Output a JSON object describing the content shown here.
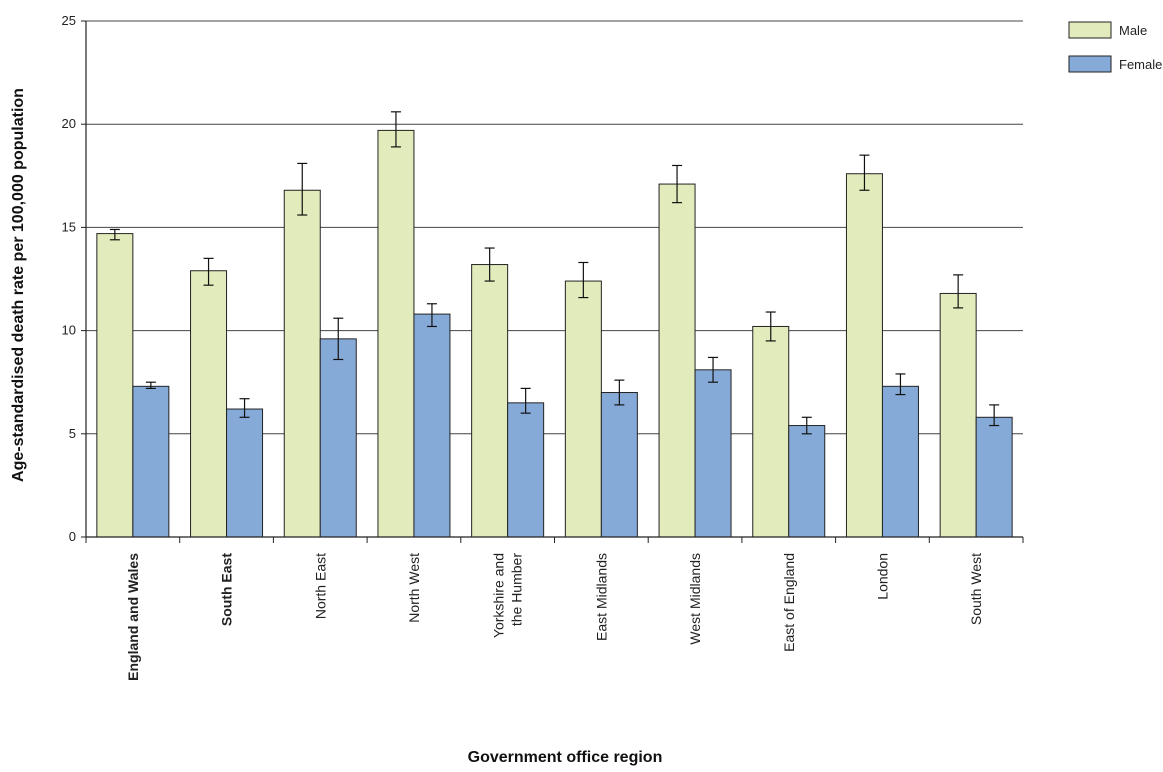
{
  "chart_data": {
    "type": "bar",
    "xlabel": "Government office region",
    "ylabel": "Age-standardised death rate per 100,000 population",
    "ylim": [
      0,
      25
    ],
    "yticks": [
      0,
      5,
      10,
      15,
      20,
      25
    ],
    "grid": true,
    "legend_position": "top-right",
    "categories": [
      {
        "lines": [
          "England and Wales"
        ],
        "bold": true
      },
      {
        "lines": [
          "South East"
        ],
        "bold": true
      },
      {
        "lines": [
          "North East"
        ],
        "bold": false
      },
      {
        "lines": [
          "North West"
        ],
        "bold": false
      },
      {
        "lines": [
          "Yorkshire and",
          "the Humber"
        ],
        "bold": false
      },
      {
        "lines": [
          "East Midlands"
        ],
        "bold": false
      },
      {
        "lines": [
          "West Midlands"
        ],
        "bold": false
      },
      {
        "lines": [
          "East of England"
        ],
        "bold": false
      },
      {
        "lines": [
          "London"
        ],
        "bold": false
      },
      {
        "lines": [
          "South West"
        ],
        "bold": false
      }
    ],
    "series": [
      {
        "name": "Male",
        "color": "#e2ebbb",
        "values": [
          14.7,
          12.9,
          16.8,
          19.7,
          13.2,
          12.4,
          17.1,
          10.2,
          17.6,
          11.8
        ],
        "error_low": [
          14.4,
          12.2,
          15.6,
          18.9,
          12.4,
          11.6,
          16.2,
          9.5,
          16.8,
          11.1
        ],
        "error_high": [
          14.9,
          13.5,
          18.1,
          20.6,
          14.0,
          13.3,
          18.0,
          10.9,
          18.5,
          12.7
        ]
      },
      {
        "name": "Female",
        "color": "#86aad8",
        "values": [
          7.3,
          6.2,
          9.6,
          10.8,
          6.5,
          7.0,
          8.1,
          5.4,
          7.3,
          5.8
        ],
        "error_low": [
          7.2,
          5.8,
          8.6,
          10.2,
          6.0,
          6.4,
          7.5,
          5.0,
          6.9,
          5.4
        ],
        "error_high": [
          7.5,
          6.7,
          10.6,
          11.3,
          7.2,
          7.6,
          8.7,
          5.8,
          7.9,
          6.4
        ]
      }
    ]
  }
}
